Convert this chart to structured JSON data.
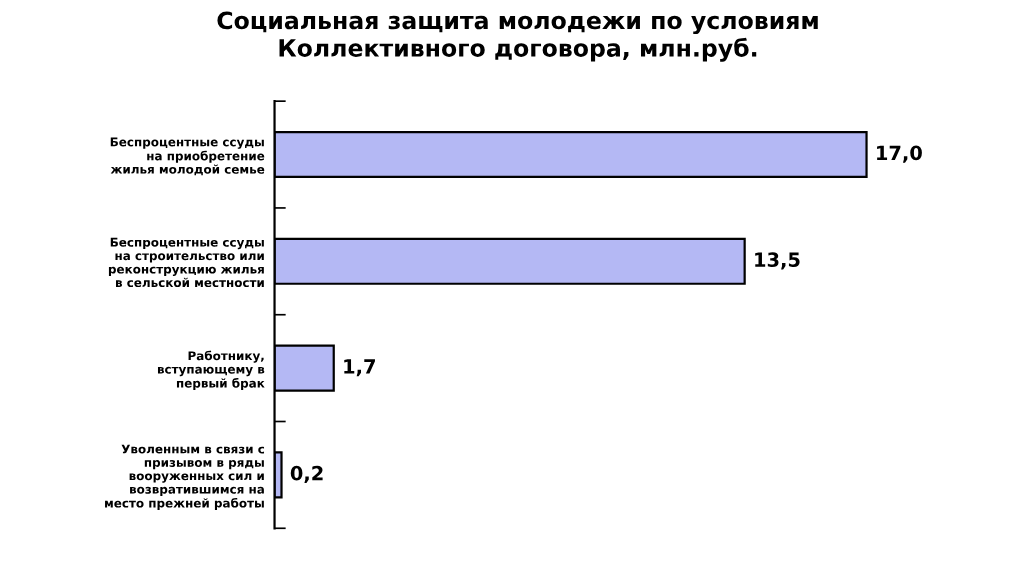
{
  "chart_data": {
    "type": "bar",
    "orientation": "horizontal",
    "title": "Социальная защита молодежи по условиям\nКоллективного договора, млн.руб.",
    "categories": [
      "Беспроцентные ссуды\nна приобретение\nжилья молодой семье",
      "Беспроцентные ссуды\nна строительство или\nреконструкцию жилья\nв сельской местности",
      "Работнику,\nвступающему в\nпервый брак",
      "Уволенным в связи с\nпризывом в ряды\nвооруженных сил и\nвозвратившимся на\nместо прежней работы"
    ],
    "values": [
      17.0,
      13.5,
      1.7,
      0.2
    ],
    "value_labels": [
      "17,0",
      "13,5",
      "1,7",
      "0,2"
    ],
    "color": "#b4b8f4",
    "grid": false,
    "legend": false
  }
}
